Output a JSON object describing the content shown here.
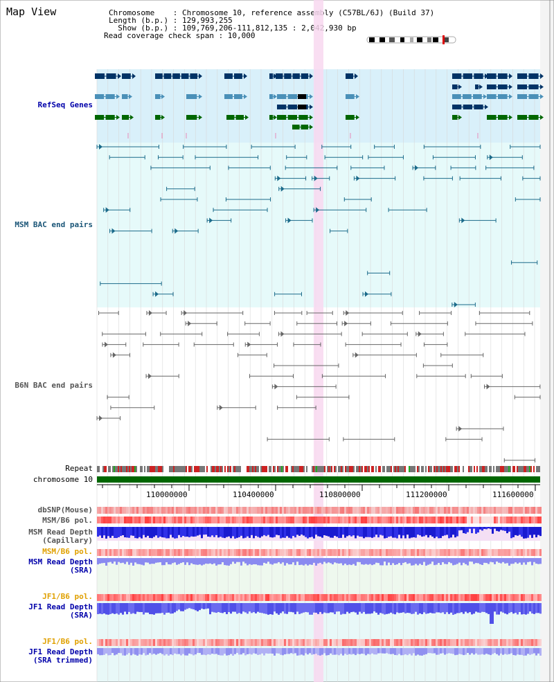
{
  "header": {
    "title": "Map View",
    "info_lines": [
      "Chromosome    : Chromosome 10, reference assembly (C57BL/6J) (Build 37)",
      "Length (b.p.) : 129,993,255",
      "  Show (b.p.) : 109,769,206-111,812,135 : 2,042,930 bp",
      "Read coverage check span : 10,000"
    ]
  },
  "tracks": {
    "refseq": {
      "label": "RefSeq Genes",
      "color": "#0000aa"
    },
    "msm_bac": {
      "label": "MSM BAC end pairs",
      "color": "#1a5577"
    },
    "b6n_bac": {
      "label": "B6N BAC end pairs",
      "color": "#555555"
    },
    "repeat": {
      "label": "Repeat",
      "color": "#000000"
    },
    "chromosome": {
      "label": "chromosome 10",
      "color": "#000000"
    }
  },
  "axis": {
    "ticks": [
      "110000000",
      "110400000",
      "110800000",
      "111200000",
      "111600000"
    ]
  },
  "coverage_tracks": [
    {
      "label": "dbSNP(Mouse)",
      "color": "#555555"
    },
    {
      "label": "MSM/B6 pol.",
      "color": "#555555"
    },
    {
      "label": "MSM Read Depth\n(Capillary)",
      "color": "#555555"
    },
    {
      "label": "MSM/B6 pol.",
      "color": "#e0a000"
    },
    {
      "label": "MSM Read Depth\n(SRA)",
      "color": "#0000aa"
    },
    {
      "label": "JF1/B6 pol.",
      "color": "#e0a000"
    },
    {
      "label": "JF1 Read Depth\n(SRA)",
      "color": "#0000aa"
    },
    {
      "label": "JF1/B6 pol.",
      "color": "#e0a000"
    },
    {
      "label": "JF1 Read Depth\n(SRA trimmed)",
      "color": "#0000aa"
    }
  ],
  "colors": {
    "refseq_bg": "#d9f0fa",
    "msm_bg": "#e6fafa",
    "highlight": "#f8d8f0",
    "gene_dark": "#003366",
    "gene_mid": "#4a90b8",
    "gene_green": "#006600"
  }
}
